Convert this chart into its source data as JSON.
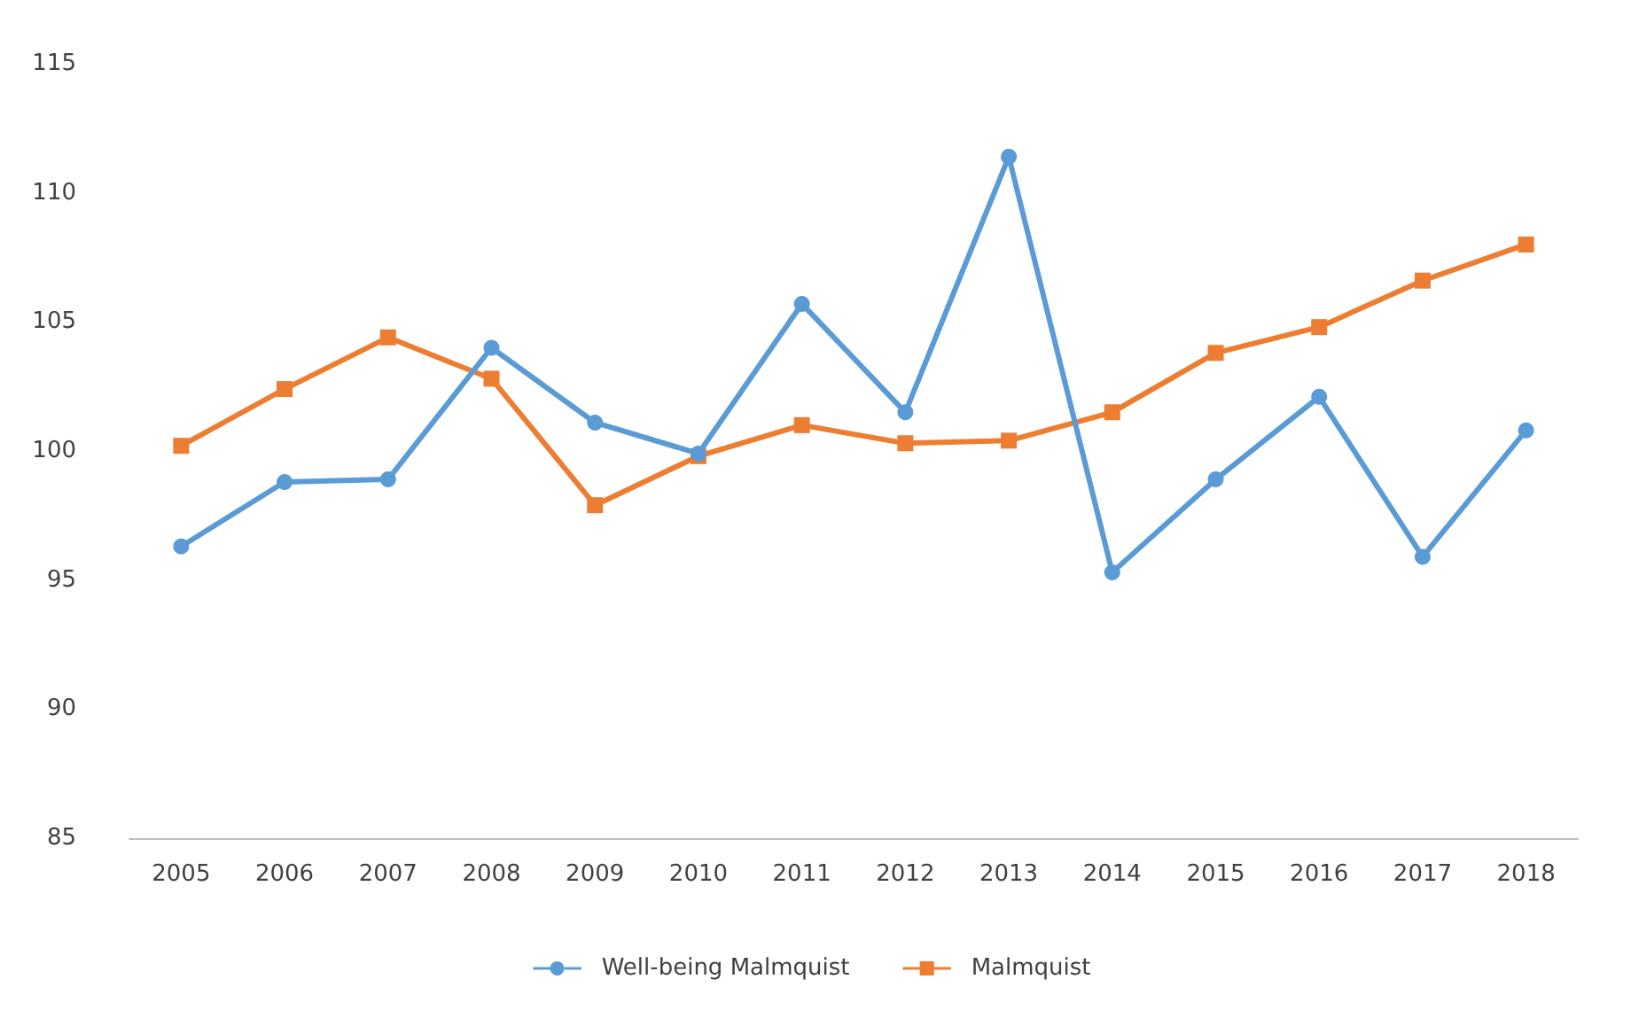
{
  "chart_data": {
    "type": "line",
    "categories": [
      "2005",
      "2006",
      "2007",
      "2008",
      "2009",
      "2010",
      "2011",
      "2012",
      "2013",
      "2014",
      "2015",
      "2016",
      "2017",
      "2018"
    ],
    "series": [
      {
        "name": "Well-being Malmquist",
        "color": "#5b9bd5",
        "marker": "circle",
        "values": [
          96.3,
          98.8,
          98.9,
          104.0,
          101.1,
          99.9,
          105.7,
          101.5,
          111.4,
          95.3,
          98.9,
          102.1,
          95.9,
          100.8
        ]
      },
      {
        "name": "Malmquist",
        "color": "#ed7d31",
        "marker": "square",
        "values": [
          100.2,
          102.4,
          104.4,
          102.8,
          97.9,
          99.8,
          101.0,
          100.3,
          100.4,
          101.5,
          103.8,
          104.8,
          106.6,
          108.0
        ]
      }
    ],
    "ylim": [
      85,
      115
    ],
    "yticks": [
      85,
      90,
      95,
      100,
      105,
      110,
      115
    ],
    "grid": false,
    "legend": "bottom",
    "line_style": "solid"
  }
}
